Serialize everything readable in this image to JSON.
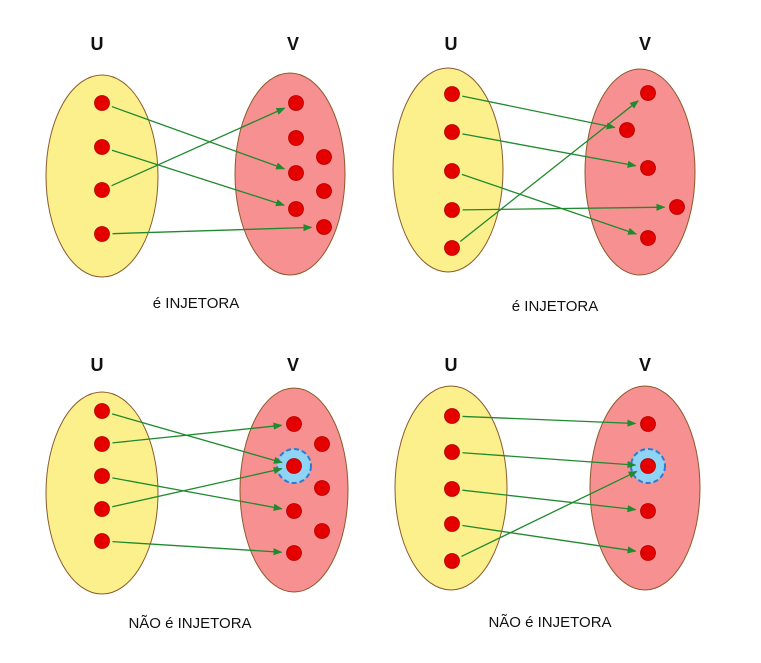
{
  "colors": {
    "domain_fill": "#fbf08c",
    "domain_stroke": "#8b5a2b",
    "codomain_fill": "#f79090",
    "codomain_stroke": "#8b5a2b",
    "dot": "#e50000",
    "dot_stroke": "#b50000",
    "arrow": "#1f8a2e",
    "highlight": "#8fd4f4",
    "highlight_stroke": "#2a7bd6"
  },
  "diagrams": [
    {
      "set_u_label": "U",
      "set_v_label": "V",
      "caption": "é INJETORA",
      "injective": true,
      "mapping": [
        [
          0,
          3
        ],
        [
          1,
          5
        ],
        [
          2,
          0
        ],
        [
          3,
          6
        ]
      ],
      "highlight_v": null
    },
    {
      "set_u_label": "U",
      "set_v_label": "V",
      "caption": "é INJETORA",
      "injective": true,
      "mapping": [
        [
          0,
          1
        ],
        [
          1,
          2
        ],
        [
          2,
          4
        ],
        [
          3,
          3
        ],
        [
          4,
          0
        ]
      ],
      "highlight_v": null
    },
    {
      "set_u_label": "U",
      "set_v_label": "V",
      "caption": "NÃO é INJETORA",
      "injective": false,
      "mapping": [
        [
          0,
          2
        ],
        [
          1,
          0
        ],
        [
          2,
          4
        ],
        [
          3,
          2
        ],
        [
          4,
          6
        ]
      ],
      "highlight_v": 2
    },
    {
      "set_u_label": "U",
      "set_v_label": "V",
      "caption": "NÃO é INJETORA",
      "injective": false,
      "mapping": [
        [
          0,
          0
        ],
        [
          1,
          1
        ],
        [
          2,
          2
        ],
        [
          3,
          3
        ],
        [
          4,
          1
        ]
      ],
      "highlight_v": 1
    }
  ]
}
